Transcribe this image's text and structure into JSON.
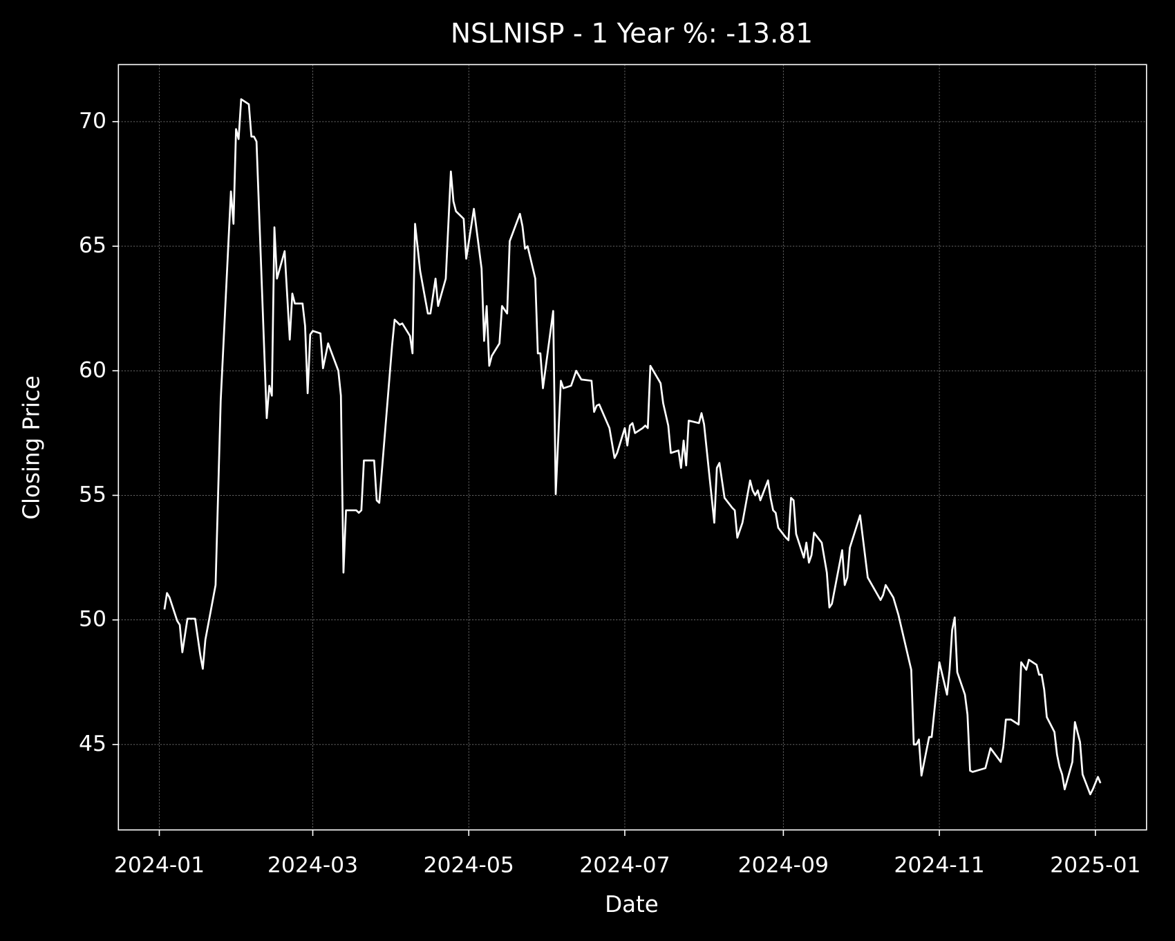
{
  "chart_data": {
    "type": "line",
    "title": "NSLNISP - 1 Year %: -13.81",
    "x_label": "Date",
    "y_label": "Closing Price",
    "color": "#ffffff",
    "grid": true,
    "xlim": [
      "2023-12-16",
      "2025-01-21"
    ],
    "ylim": [
      41.57,
      72.29
    ],
    "xticks": [
      {
        "value": "2024-01-01",
        "label": "2024-01"
      },
      {
        "value": "2024-03-01",
        "label": "2024-03"
      },
      {
        "value": "2024-05-01",
        "label": "2024-05"
      },
      {
        "value": "2024-07-01",
        "label": "2024-07"
      },
      {
        "value": "2024-09-01",
        "label": "2024-09"
      },
      {
        "value": "2024-11-01",
        "label": "2024-11"
      },
      {
        "value": "2025-01-01",
        "label": "2025-01"
      }
    ],
    "yticks": [
      45,
      50,
      55,
      60,
      65,
      70
    ],
    "x": [
      "2024-01-03",
      "2024-01-04",
      "2024-01-05",
      "2024-01-08",
      "2024-01-09",
      "2024-01-10",
      "2024-01-12",
      "2024-01-15",
      "2024-01-17",
      "2024-01-18",
      "2024-01-19",
      "2024-01-23",
      "2024-01-25",
      "2024-01-29",
      "2024-01-30",
      "2024-01-31",
      "2024-02-01",
      "2024-02-02",
      "2024-02-05",
      "2024-02-06",
      "2024-02-07",
      "2024-02-08",
      "2024-02-12",
      "2024-02-13",
      "2024-02-14",
      "2024-02-15",
      "2024-02-16",
      "2024-02-19",
      "2024-02-21",
      "2024-02-22",
      "2024-02-23",
      "2024-02-26",
      "2024-02-27",
      "2024-02-28",
      "2024-02-29",
      "2024-03-01",
      "2024-03-04",
      "2024-03-05",
      "2024-03-07",
      "2024-03-11",
      "2024-03-12",
      "2024-03-13",
      "2024-03-14",
      "2024-03-18",
      "2024-03-19",
      "2024-03-20",
      "2024-03-21",
      "2024-03-25",
      "2024-03-26",
      "2024-03-27",
      "2024-04-01",
      "2024-04-02",
      "2024-04-04",
      "2024-04-05",
      "2024-04-08",
      "2024-04-09",
      "2024-04-10",
      "2024-04-12",
      "2024-04-15",
      "2024-04-16",
      "2024-04-18",
      "2024-04-19",
      "2024-04-22",
      "2024-04-24",
      "2024-04-25",
      "2024-04-26",
      "2024-04-29",
      "2024-04-30",
      "2024-05-03",
      "2024-05-06",
      "2024-05-07",
      "2024-05-08",
      "2024-05-09",
      "2024-05-10",
      "2024-05-13",
      "2024-05-14",
      "2024-05-16",
      "2024-05-17",
      "2024-05-21",
      "2024-05-22",
      "2024-05-23",
      "2024-05-24",
      "2024-05-27",
      "2024-05-28",
      "2024-05-29",
      "2024-05-30",
      "2024-06-03",
      "2024-06-04",
      "2024-06-06",
      "2024-06-07",
      "2024-06-10",
      "2024-06-12",
      "2024-06-14",
      "2024-06-18",
      "2024-06-19",
      "2024-06-20",
      "2024-06-21",
      "2024-06-25",
      "2024-06-27",
      "2024-06-28",
      "2024-07-01",
      "2024-07-02",
      "2024-07-03",
      "2024-07-04",
      "2024-07-05",
      "2024-07-08",
      "2024-07-09",
      "2024-07-10",
      "2024-07-11",
      "2024-07-15",
      "2024-07-16",
      "2024-07-18",
      "2024-07-19",
      "2024-07-22",
      "2024-07-23",
      "2024-07-24",
      "2024-07-25",
      "2024-07-26",
      "2024-07-30",
      "2024-07-31",
      "2024-08-01",
      "2024-08-05",
      "2024-08-06",
      "2024-08-07",
      "2024-08-09",
      "2024-08-12",
      "2024-08-13",
      "2024-08-14",
      "2024-08-16",
      "2024-08-19",
      "2024-08-20",
      "2024-08-21",
      "2024-08-22",
      "2024-08-23",
      "2024-08-26",
      "2024-08-27",
      "2024-08-28",
      "2024-08-29",
      "2024-08-30",
      "2024-09-02",
      "2024-09-03",
      "2024-09-04",
      "2024-09-05",
      "2024-09-06",
      "2024-09-09",
      "2024-09-10",
      "2024-09-11",
      "2024-09-12",
      "2024-09-13",
      "2024-09-16",
      "2024-09-18",
      "2024-09-19",
      "2024-09-20",
      "2024-09-24",
      "2024-09-25",
      "2024-09-26",
      "2024-09-27",
      "2024-10-01",
      "2024-10-04",
      "2024-10-09",
      "2024-10-10",
      "2024-10-11",
      "2024-10-14",
      "2024-10-16",
      "2024-10-21",
      "2024-10-22",
      "2024-10-23",
      "2024-10-24",
      "2024-10-25",
      "2024-10-28",
      "2024-10-29",
      "2024-11-01",
      "2024-11-04",
      "2024-11-05",
      "2024-11-06",
      "2024-11-07",
      "2024-11-08",
      "2024-11-11",
      "2024-11-12",
      "2024-11-13",
      "2024-11-14",
      "2024-11-19",
      "2024-11-21",
      "2024-11-25",
      "2024-11-26",
      "2024-11-27",
      "2024-11-29",
      "2024-12-02",
      "2024-12-03",
      "2024-12-05",
      "2024-12-06",
      "2024-12-09",
      "2024-12-10",
      "2024-12-11",
      "2024-12-12",
      "2024-12-13",
      "2024-12-16",
      "2024-12-17",
      "2024-12-18",
      "2024-12-19",
      "2024-12-20",
      "2024-12-23",
      "2024-12-24",
      "2024-12-26",
      "2024-12-27",
      "2024-12-30",
      "2024-12-31",
      "2025-01-02",
      "2025-01-03"
    ],
    "values": [
      50.42,
      51.08,
      50.9,
      49.96,
      49.8,
      48.7,
      50.05,
      50.05,
      48.6,
      48.04,
      49.2,
      51.4,
      58.8,
      67.2,
      65.9,
      69.7,
      69.3,
      70.9,
      70.7,
      69.4,
      69.4,
      69.2,
      58.1,
      59.4,
      59.0,
      65.76,
      63.7,
      64.8,
      61.25,
      63.1,
      62.7,
      62.7,
      61.8,
      59.1,
      61.45,
      61.6,
      61.5,
      60.1,
      61.1,
      60.0,
      59.0,
      51.9,
      54.4,
      54.4,
      54.3,
      54.4,
      56.4,
      56.4,
      54.8,
      54.7,
      61.0,
      62.05,
      61.85,
      61.9,
      61.4,
      60.7,
      65.9,
      64.0,
      62.3,
      62.3,
      63.7,
      62.6,
      63.7,
      68.0,
      66.8,
      66.4,
      66.1,
      64.5,
      66.5,
      64.1,
      61.2,
      62.6,
      60.2,
      60.6,
      61.1,
      62.6,
      62.3,
      65.2,
      66.3,
      65.8,
      64.9,
      65.0,
      63.7,
      60.7,
      60.7,
      59.3,
      62.4,
      55.05,
      59.6,
      59.3,
      59.4,
      60.0,
      59.65,
      59.6,
      58.35,
      58.6,
      58.65,
      57.7,
      56.5,
      56.7,
      57.7,
      57.0,
      57.8,
      57.9,
      57.5,
      57.7,
      57.8,
      57.7,
      60.2,
      59.5,
      58.7,
      57.8,
      56.7,
      56.8,
      56.1,
      57.2,
      56.2,
      58.0,
      57.9,
      58.3,
      57.85,
      53.9,
      56.1,
      56.3,
      54.9,
      54.5,
      54.4,
      53.3,
      53.9,
      55.6,
      55.2,
      55.0,
      55.2,
      54.8,
      55.6,
      54.9,
      54.4,
      54.3,
      53.7,
      53.3,
      53.2,
      54.9,
      54.8,
      53.45,
      52.5,
      53.1,
      52.3,
      52.6,
      53.5,
      53.1,
      51.9,
      50.5,
      50.65,
      52.8,
      51.4,
      51.7,
      52.9,
      54.2,
      51.7,
      50.8,
      51.0,
      51.4,
      50.9,
      50.2,
      48.0,
      45.0,
      45.0,
      45.2,
      43.75,
      45.3,
      45.3,
      48.3,
      47.0,
      48.0,
      49.6,
      50.1,
      47.9,
      47.0,
      46.2,
      43.95,
      43.9,
      44.05,
      44.85,
      44.3,
      44.9,
      46.0,
      46.0,
      45.8,
      48.3,
      48.0,
      48.4,
      48.2,
      47.8,
      47.8,
      47.2,
      46.1,
      45.5,
      44.6,
      44.1,
      43.8,
      43.2,
      44.3,
      45.9,
      45.1,
      43.8,
      43.0,
      43.2,
      43.7,
      43.45
    ]
  }
}
